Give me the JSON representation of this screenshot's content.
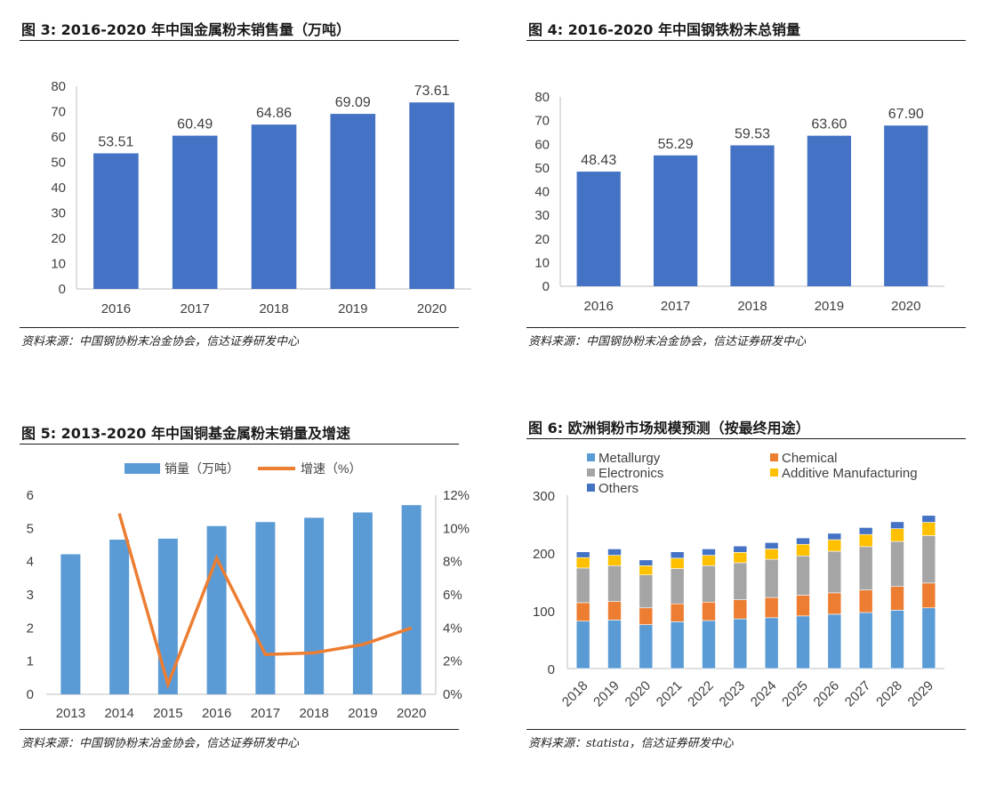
{
  "colors": {
    "bar_blue": "#4472C4",
    "bar_lightblue": "#5B9BD5",
    "line_orange": "#ED7D31",
    "axis": "#bfbfbf",
    "text": "#404040"
  },
  "fig3": {
    "title": "图 3:  2016-2020 年中国金属粉末销售量（万吨）",
    "source": "资料来源：中国钢协粉末冶金协会，信达证券研发中心",
    "chart_data": {
      "type": "bar",
      "categories": [
        "2016",
        "2017",
        "2018",
        "2019",
        "2020"
      ],
      "values": [
        53.51,
        60.49,
        64.86,
        69.09,
        73.61
      ],
      "value_labels": [
        "53.51",
        "60.49",
        "64.86",
        "69.09",
        "73.61"
      ],
      "ylim": [
        0,
        80
      ],
      "yticks": [
        "0",
        "10",
        "20",
        "30",
        "40",
        "50",
        "60",
        "70",
        "80"
      ],
      "grid": false
    }
  },
  "fig4": {
    "title": "图 4:  2016-2020 年中国钢铁粉末总销量",
    "source": "资料来源：中国钢协粉末冶金协会，信达证券研发中心",
    "chart_data": {
      "type": "bar",
      "categories": [
        "2016",
        "2017",
        "2018",
        "2019",
        "2020"
      ],
      "values": [
        48.43,
        55.29,
        59.53,
        63.6,
        67.9
      ],
      "value_labels": [
        "48.43",
        "55.29",
        "59.53",
        "63.60",
        "67.90"
      ],
      "ylim": [
        0,
        80
      ],
      "yticks": [
        "0",
        "10",
        "20",
        "30",
        "40",
        "50",
        "60",
        "70",
        "80"
      ],
      "grid": false
    }
  },
  "fig5": {
    "title": "图 5:  2013-2020 年中国铜基金属粉末销量及增速",
    "source": "资料来源：中国钢协粉末冶金协会，信达证券研发中心",
    "chart_data": {
      "type": "bar",
      "categories": [
        "2013",
        "2014",
        "2015",
        "2016",
        "2017",
        "2018",
        "2019",
        "2020"
      ],
      "series": [
        {
          "name": "销量（万吨）",
          "type": "bar",
          "axis": "left",
          "values": [
            4.22,
            4.66,
            4.69,
            5.07,
            5.19,
            5.32,
            5.48,
            5.7
          ]
        },
        {
          "name": "增速（%）",
          "type": "line",
          "axis": "right",
          "values": [
            null,
            10.9,
            0.6,
            8.2,
            2.4,
            2.5,
            3.0,
            4.0
          ]
        }
      ],
      "ylim": [
        0,
        6
      ],
      "yticks": [
        "0",
        "1",
        "2",
        "3",
        "4",
        "5",
        "6"
      ],
      "y2lim": [
        0,
        12
      ],
      "y2ticks": [
        "0%",
        "2%",
        "4%",
        "6%",
        "8%",
        "10%",
        "12%"
      ],
      "legend_position": "top",
      "grid": false
    }
  },
  "fig6": {
    "title": "图 6:  欧洲铜粉市场规模预测（按最终用途）",
    "source": "资料来源：statista，信达证券研发中心",
    "chart_data": {
      "type": "bar",
      "stacked": true,
      "categories": [
        "2018",
        "2019",
        "2020",
        "2021",
        "2022",
        "2023",
        "2024",
        "2025",
        "2026",
        "2027",
        "2028",
        "2029"
      ],
      "series": [
        {
          "name": "Metallurgy",
          "color": "#5B9BD5",
          "values": [
            82,
            84,
            76,
            81,
            83,
            86,
            88,
            91,
            94,
            97,
            101,
            105
          ]
        },
        {
          "name": "Chemical",
          "color": "#ED7D31",
          "values": [
            32,
            32,
            29,
            31,
            32,
            33,
            35,
            36,
            37,
            39,
            41,
            43
          ]
        },
        {
          "name": "Electronics",
          "color": "#A5A5A5",
          "values": [
            60,
            62,
            57,
            61,
            63,
            64,
            66,
            68,
            72,
            75,
            78,
            82
          ]
        },
        {
          "name": "Additive Manufacturing",
          "color": "#FFC000",
          "values": [
            18,
            18,
            16,
            18,
            18,
            18,
            18,
            20,
            20,
            21,
            22,
            23
          ]
        },
        {
          "name": "Others",
          "color": "#4472C4",
          "values": [
            10,
            11,
            10,
            11,
            11,
            11,
            11,
            11,
            11,
            12,
            12,
            12
          ]
        }
      ],
      "ylim": [
        0,
        300
      ],
      "yticks": [
        "0",
        "100",
        "200",
        "300"
      ],
      "legend_position": "top-left",
      "grid": false
    }
  }
}
